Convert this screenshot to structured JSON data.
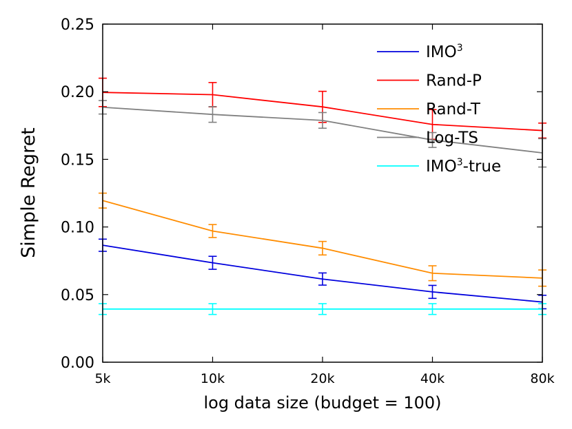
{
  "chart_data": {
    "type": "line",
    "title": "",
    "xlabel": "log data size (budget = 100)",
    "ylabel": "Simple Regret",
    "categories": [
      "5k",
      "10k",
      "20k",
      "40k",
      "80k"
    ],
    "x_scale": "log",
    "ylim": [
      0.0,
      0.25
    ],
    "y_ticks": [
      0.0,
      0.05,
      0.1,
      0.15,
      0.2,
      0.25
    ],
    "y_tick_labels": [
      "0.00",
      "0.05",
      "0.10",
      "0.15",
      "0.20",
      "0.25"
    ],
    "grid": false,
    "legend_position": "top-right",
    "series": [
      {
        "name": "IMO",
        "sup": "3",
        "suffix": "",
        "color": "#0000dd",
        "values": [
          0.0865,
          0.0735,
          0.0615,
          0.052,
          0.0445
        ],
        "errors": [
          0.0045,
          0.0048,
          0.0045,
          0.0048,
          0.005
        ]
      },
      {
        "name": "Rand-P",
        "sup": "",
        "suffix": "",
        "color": "#ff0000",
        "values": [
          0.1995,
          0.1978,
          0.1888,
          0.1758,
          0.1713
        ],
        "errors": [
          0.0105,
          0.009,
          0.0115,
          0.011,
          0.0055
        ]
      },
      {
        "name": "Rand-T",
        "sup": "",
        "suffix": "",
        "color": "#ff8c00",
        "values": [
          0.1195,
          0.097,
          0.0843,
          0.0658,
          0.0622
        ],
        "errors": [
          0.0055,
          0.0048,
          0.005,
          0.0055,
          0.006
        ]
      },
      {
        "name": "Log-TS",
        "sup": "",
        "suffix": "",
        "color": "#808080",
        "values": [
          0.1885,
          0.1832,
          0.1788,
          0.1643,
          0.1548
        ],
        "errors": [
          0.005,
          0.0058,
          0.0058,
          0.0055,
          0.0105
        ]
      },
      {
        "name": "IMO",
        "sup": "3",
        "suffix": "-true",
        "color": "#00ffff",
        "values": [
          0.0393,
          0.0393,
          0.0393,
          0.0393,
          0.0393
        ],
        "errors": [
          0.004,
          0.004,
          0.004,
          0.004,
          0.004
        ]
      }
    ]
  }
}
